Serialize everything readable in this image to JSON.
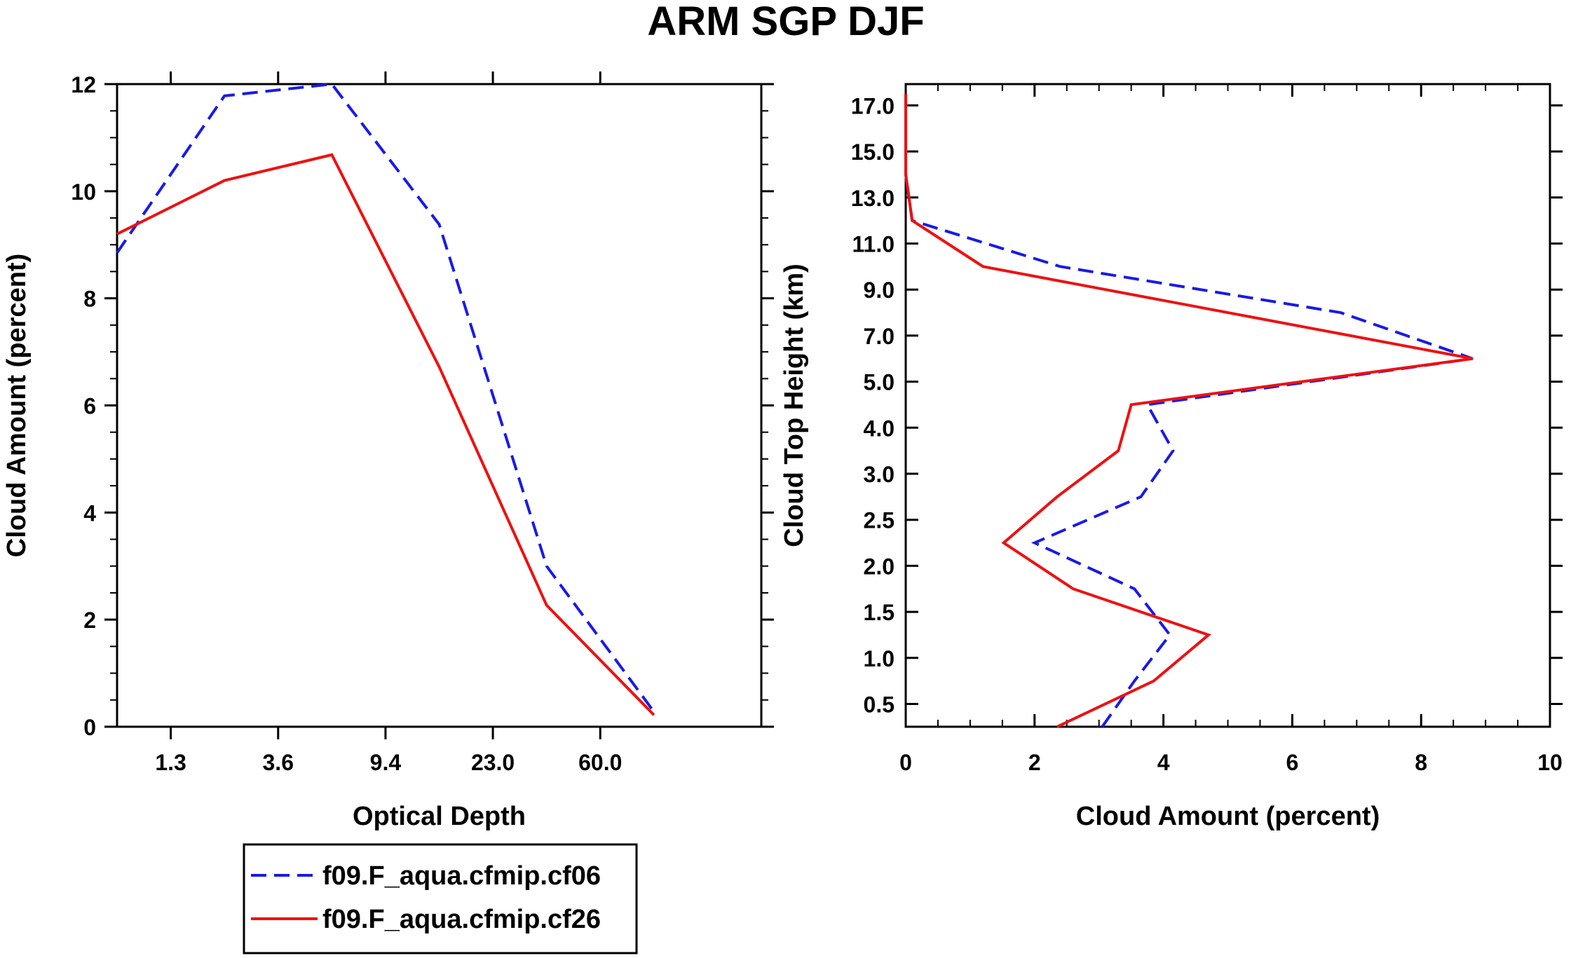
{
  "title": "ARM SGP DJF",
  "legend": [
    {
      "label": "f09.F_aqua.cfmip.cf06",
      "color": "#1a1ae6",
      "dash": "dashed"
    },
    {
      "label": "f09.F_aqua.cfmip.cf26",
      "color": "#ee1111",
      "dash": "solid"
    }
  ],
  "chart_data": [
    {
      "type": "line",
      "title": "",
      "xlabel": "Optical Depth",
      "ylabel": "Cloud Amount (percent)",
      "x_ticks": [
        "1.3",
        "3.6",
        "9.4",
        "23.0",
        "60.0"
      ],
      "y_ticks": [
        "0",
        "2",
        "4",
        "6",
        "8",
        "10",
        "12"
      ],
      "ylim": [
        0,
        12
      ],
      "x_positions": [
        0,
        1,
        2,
        3,
        4,
        5,
        6
      ],
      "series": [
        {
          "name": "f09.F_aqua.cfmip.cf06",
          "x": [
            0,
            1,
            2,
            3,
            4,
            5,
            6
          ],
          "values": [
            8.85,
            11.78,
            12.0,
            9.38,
            3.0,
            0.28,
            null
          ]
        },
        {
          "name": "f09.F_aqua.cfmip.cf26",
          "x": [
            0,
            1,
            2,
            3,
            4,
            5,
            6
          ],
          "values": [
            9.2,
            10.2,
            10.68,
            6.72,
            2.27,
            0.22,
            null
          ]
        }
      ]
    },
    {
      "type": "line",
      "title": "",
      "xlabel": "Cloud Amount (percent)",
      "ylabel": "Cloud Top Height (km)",
      "x_ticks": [
        "0",
        "2",
        "4",
        "6",
        "8",
        "10"
      ],
      "xlim": [
        0,
        10
      ],
      "y_ticks": [
        "0.5",
        "1.0",
        "1.5",
        "2.0",
        "2.5",
        "3.0",
        "4.0",
        "5.0",
        "7.0",
        "9.0",
        "11.0",
        "13.0",
        "15.0",
        "17.0"
      ],
      "y_levels": [
        0.25,
        0.75,
        1.25,
        1.75,
        2.25,
        2.75,
        3.5,
        4.5,
        6.0,
        8.0,
        10.0,
        12.0,
        14.0,
        16.0,
        17.5
      ],
      "series": [
        {
          "name": "f09.F_aqua.cfmip.cf06",
          "x": [
            3.05,
            3.55,
            4.1,
            3.55,
            2.0,
            3.65,
            4.15,
            3.75,
            8.8,
            6.75,
            2.4,
            0.1,
            0.0,
            0.0,
            0.0
          ]
        },
        {
          "name": "f09.F_aqua.cfmip.cf26",
          "x": [
            2.35,
            3.85,
            4.7,
            2.6,
            1.52,
            2.35,
            3.3,
            3.5,
            8.8,
            5.0,
            1.2,
            0.1,
            0.0,
            0.0,
            0.0
          ]
        }
      ]
    }
  ]
}
